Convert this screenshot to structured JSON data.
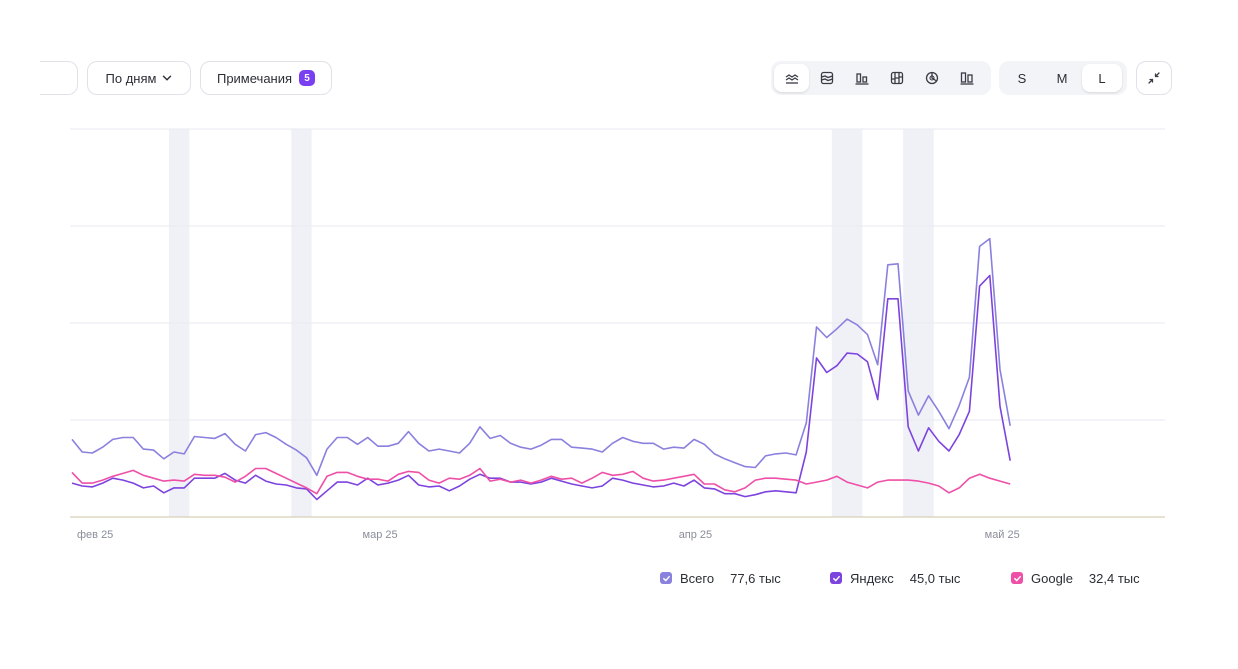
{
  "toolbar": {
    "grouping_label": "По дням",
    "notes_label": "Примечания",
    "notes_count": "5",
    "chart_type_icons": [
      "line-chart-icon",
      "stacked-area-icon",
      "bar-chart-icon",
      "stacked-bar-icon",
      "pie-chart-icon",
      "column-chart-icon"
    ],
    "active_chart_type": "line-chart-icon",
    "sizes": [
      "S",
      "M",
      "L"
    ],
    "active_size": "L",
    "collapse_icon": "collapse-icon"
  },
  "colors": {
    "total": "#8a80de",
    "yandex": "#7d43de",
    "google": "#ee4fa7",
    "accent": "#7b3ff2",
    "weekend_band": "#f0f1f7",
    "grid": "#e9eaf0",
    "axis_text": "#8b8e9a"
  },
  "chart_data": {
    "type": "line",
    "title": "",
    "xlabel": "",
    "ylabel": "",
    "x_tick_labels": [
      "фев 25",
      "мар 25",
      "апр 25",
      "май 25"
    ],
    "x_tick_days": [
      0,
      28,
      59,
      89
    ],
    "x_range_days": [
      0,
      106
    ],
    "ylim": [
      0,
      4
    ],
    "y_gridlines": [
      1,
      2,
      3,
      4
    ],
    "y_units": "gridline intervals (tick labels not visible)",
    "shaded_days": [
      [
        10,
        11
      ],
      [
        22,
        23
      ],
      [
        75,
        77
      ],
      [
        82,
        84
      ]
    ],
    "legend_position": "bottom-right",
    "series": [
      {
        "name": "Всего",
        "total_label": "77,6 тыс",
        "color": "#8a80de",
        "values": [
          0.8,
          0.67,
          0.66,
          0.72,
          0.8,
          0.82,
          0.82,
          0.7,
          0.69,
          0.6,
          0.67,
          0.65,
          0.83,
          0.82,
          0.81,
          0.86,
          0.75,
          0.68,
          0.85,
          0.87,
          0.82,
          0.75,
          0.69,
          0.61,
          0.43,
          0.7,
          0.82,
          0.82,
          0.75,
          0.82,
          0.73,
          0.73,
          0.76,
          0.88,
          0.76,
          0.68,
          0.7,
          0.68,
          0.66,
          0.76,
          0.93,
          0.81,
          0.84,
          0.76,
          0.72,
          0.7,
          0.74,
          0.8,
          0.8,
          0.72,
          0.71,
          0.7,
          0.67,
          0.76,
          0.82,
          0.78,
          0.76,
          0.76,
          0.7,
          0.72,
          0.71,
          0.8,
          0.75,
          0.65,
          0.6,
          0.56,
          0.52,
          0.51,
          0.63,
          0.65,
          0.66,
          0.64,
          0.97,
          1.96,
          1.85,
          1.94,
          2.04,
          1.98,
          1.88,
          1.57,
          2.6,
          2.61,
          1.3,
          1.05,
          1.25,
          1.09,
          0.91,
          1.15,
          1.44,
          2.79,
          2.87,
          1.52,
          0.94
        ]
      },
      {
        "name": "Яндекс",
        "total_label": "45,0 тыс",
        "color": "#7d43de",
        "values": [
          0.35,
          0.32,
          0.31,
          0.35,
          0.4,
          0.38,
          0.35,
          0.3,
          0.32,
          0.25,
          0.3,
          0.3,
          0.4,
          0.4,
          0.4,
          0.45,
          0.38,
          0.35,
          0.43,
          0.37,
          0.34,
          0.33,
          0.3,
          0.29,
          0.18,
          0.27,
          0.36,
          0.36,
          0.33,
          0.4,
          0.33,
          0.35,
          0.38,
          0.43,
          0.33,
          0.31,
          0.32,
          0.27,
          0.32,
          0.39,
          0.44,
          0.4,
          0.4,
          0.36,
          0.36,
          0.34,
          0.36,
          0.4,
          0.37,
          0.34,
          0.32,
          0.3,
          0.32,
          0.4,
          0.38,
          0.35,
          0.33,
          0.31,
          0.32,
          0.35,
          0.32,
          0.38,
          0.3,
          0.29,
          0.24,
          0.24,
          0.21,
          0.23,
          0.26,
          0.27,
          0.26,
          0.25,
          0.67,
          1.64,
          1.49,
          1.56,
          1.69,
          1.68,
          1.6,
          1.21,
          2.25,
          2.25,
          0.93,
          0.68,
          0.92,
          0.78,
          0.68,
          0.85,
          1.09,
          2.38,
          2.49,
          1.14,
          0.58
        ]
      },
      {
        "name": "Google",
        "total_label": "32,4 тыс",
        "color": "#ee4fa7",
        "values": [
          0.46,
          0.35,
          0.35,
          0.38,
          0.42,
          0.45,
          0.48,
          0.43,
          0.4,
          0.37,
          0.38,
          0.37,
          0.44,
          0.43,
          0.43,
          0.41,
          0.36,
          0.42,
          0.5,
          0.5,
          0.45,
          0.4,
          0.35,
          0.3,
          0.24,
          0.42,
          0.46,
          0.46,
          0.42,
          0.39,
          0.39,
          0.37,
          0.44,
          0.47,
          0.46,
          0.38,
          0.35,
          0.4,
          0.39,
          0.43,
          0.5,
          0.37,
          0.39,
          0.36,
          0.38,
          0.35,
          0.38,
          0.42,
          0.39,
          0.4,
          0.35,
          0.4,
          0.46,
          0.43,
          0.44,
          0.47,
          0.4,
          0.37,
          0.38,
          0.4,
          0.42,
          0.44,
          0.34,
          0.34,
          0.28,
          0.26,
          0.3,
          0.38,
          0.4,
          0.4,
          0.39,
          0.38,
          0.34,
          0.36,
          0.38,
          0.42,
          0.36,
          0.33,
          0.3,
          0.36,
          0.38,
          0.38,
          0.38,
          0.37,
          0.35,
          0.32,
          0.25,
          0.3,
          0.4,
          0.44,
          0.4,
          0.37,
          0.34
        ]
      }
    ]
  }
}
